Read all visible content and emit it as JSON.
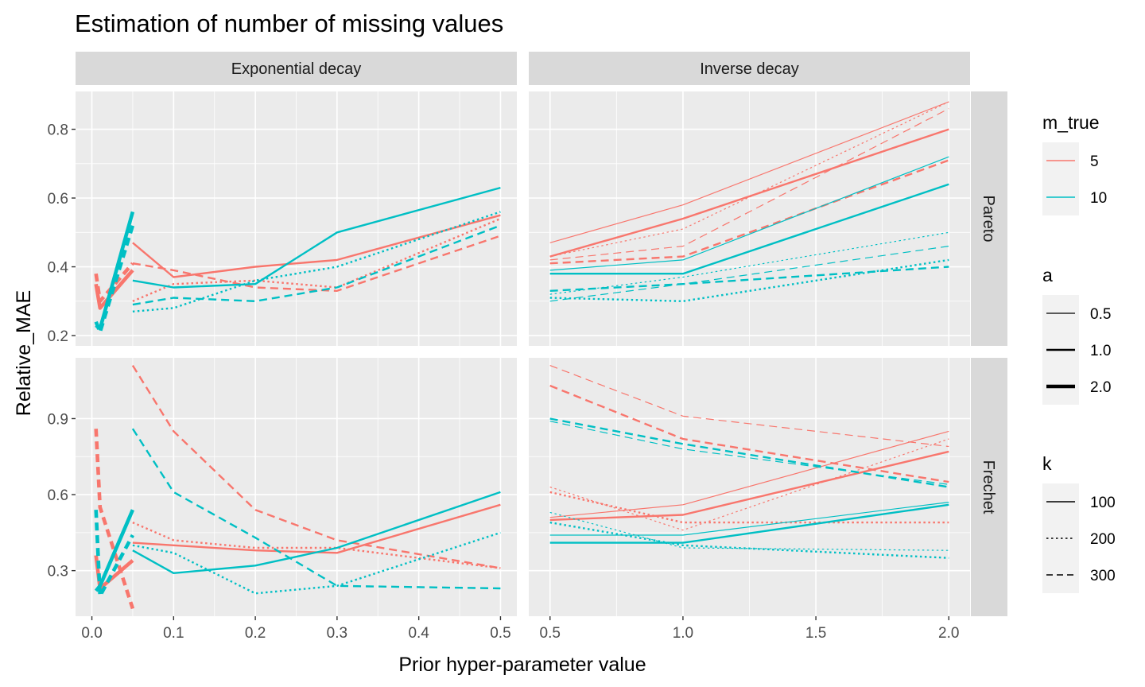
{
  "chart_data": {
    "type": "line",
    "title": "Estimation of number of missing values",
    "xlabel": "Prior hyper-parameter value",
    "ylabel": "Relative_MAE",
    "facet_columns": [
      {
        "label": "Exponential decay",
        "xlim": [
          -0.02,
          0.52
        ],
        "ticks": [
          0,
          0.1,
          0.2,
          0.3,
          0.4,
          0.5
        ],
        "tick_labels": [
          "0.0",
          "0.1",
          "0.2",
          "0.3",
          "0.4",
          "0.5"
        ]
      },
      {
        "label": "Inverse decay",
        "xlim": [
          0.42,
          2.08
        ],
        "ticks": [
          0.5,
          1.0,
          1.5,
          2.0
        ],
        "tick_labels": [
          "0.5",
          "1.0",
          "1.5",
          "2.0"
        ]
      }
    ],
    "facet_rows": [
      {
        "label": "Pareto",
        "ylim": [
          0.17,
          0.91
        ],
        "ticks": [
          0.2,
          0.4,
          0.6,
          0.8
        ],
        "tick_labels": [
          "0.2",
          "0.4",
          "0.6",
          "0.8"
        ]
      },
      {
        "label": "Frechet",
        "ylim": [
          0.12,
          1.14
        ],
        "ticks": [
          0.3,
          0.6,
          0.9
        ],
        "tick_labels": [
          "0.3",
          "0.6",
          "0.9"
        ]
      }
    ],
    "grid": true,
    "legend_position": "right",
    "colors": {
      "m_true_5": "#F8766D",
      "m_true_10": "#00BFC4"
    },
    "legends": [
      {
        "title": "m_true",
        "kind": "color",
        "entries": [
          {
            "label": "5",
            "color": "#F8766D"
          },
          {
            "label": "10",
            "color": "#00BFC4"
          }
        ]
      },
      {
        "title": "a",
        "kind": "linewidth",
        "entries": [
          {
            "label": "0.5",
            "width": 1.2
          },
          {
            "label": "1.0",
            "width": 2.4
          },
          {
            "label": "2.0",
            "width": 4.6
          }
        ]
      },
      {
        "title": "k",
        "kind": "linetype",
        "entries": [
          {
            "label": "100",
            "dash": "solid"
          },
          {
            "label": "200",
            "dash": "dotted"
          },
          {
            "label": "300",
            "dash": "dashed"
          }
        ]
      }
    ],
    "series": [
      {
        "panel": [
          0,
          0
        ],
        "m_true": "5",
        "a": "1.0",
        "k": "100",
        "x": [
          0.05,
          0.1,
          0.2,
          0.3,
          0.5
        ],
        "y": [
          0.47,
          0.37,
          0.4,
          0.42,
          0.55
        ]
      },
      {
        "panel": [
          0,
          0
        ],
        "m_true": "5",
        "a": "1.0",
        "k": "200",
        "x": [
          0.05,
          0.1,
          0.2,
          0.3,
          0.5
        ],
        "y": [
          0.3,
          0.35,
          0.36,
          0.34,
          0.54
        ]
      },
      {
        "panel": [
          0,
          0
        ],
        "m_true": "5",
        "a": "1.0",
        "k": "300",
        "x": [
          0.05,
          0.1,
          0.2,
          0.3,
          0.5
        ],
        "y": [
          0.41,
          0.39,
          0.34,
          0.33,
          0.49
        ]
      },
      {
        "panel": [
          0,
          0
        ],
        "m_true": "10",
        "a": "1.0",
        "k": "100",
        "x": [
          0.05,
          0.1,
          0.2,
          0.3,
          0.5
        ],
        "y": [
          0.36,
          0.34,
          0.35,
          0.5,
          0.63
        ]
      },
      {
        "panel": [
          0,
          0
        ],
        "m_true": "10",
        "a": "1.0",
        "k": "200",
        "x": [
          0.05,
          0.1,
          0.2,
          0.3,
          0.5
        ],
        "y": [
          0.27,
          0.28,
          0.36,
          0.4,
          0.56
        ]
      },
      {
        "panel": [
          0,
          0
        ],
        "m_true": "10",
        "a": "1.0",
        "k": "300",
        "x": [
          0.05,
          0.1,
          0.2,
          0.3,
          0.5
        ],
        "y": [
          0.29,
          0.31,
          0.3,
          0.34,
          0.52
        ]
      },
      {
        "panel": [
          0,
          0
        ],
        "m_true": "5",
        "a": "2.0",
        "k": "100",
        "x": [
          0.005,
          0.01,
          0.05
        ],
        "y": [
          0.35,
          0.28,
          0.39
        ]
      },
      {
        "panel": [
          0,
          0
        ],
        "m_true": "5",
        "a": "2.0",
        "k": "300",
        "x": [
          0.005,
          0.01,
          0.05
        ],
        "y": [
          0.38,
          0.3,
          0.41
        ]
      },
      {
        "panel": [
          0,
          0
        ],
        "m_true": "10",
        "a": "2.0",
        "k": "100",
        "x": [
          0.005,
          0.01,
          0.05
        ],
        "y": [
          0.23,
          0.22,
          0.56
        ]
      },
      {
        "panel": [
          0,
          0
        ],
        "m_true": "10",
        "a": "2.0",
        "k": "300",
        "x": [
          0.005,
          0.01,
          0.05
        ],
        "y": [
          0.24,
          0.21,
          0.52
        ]
      },
      {
        "panel": [
          0,
          1
        ],
        "m_true": "5",
        "a": "0.5",
        "k": "100",
        "x": [
          0.5,
          1.0,
          2.0
        ],
        "y": [
          0.47,
          0.58,
          0.88
        ]
      },
      {
        "panel": [
          0,
          1
        ],
        "m_true": "5",
        "a": "0.5",
        "k": "200",
        "x": [
          0.5,
          1.0,
          2.0
        ],
        "y": [
          0.43,
          0.51,
          0.88
        ]
      },
      {
        "panel": [
          0,
          1
        ],
        "m_true": "5",
        "a": "0.5",
        "k": "300",
        "x": [
          0.5,
          1.0,
          2.0
        ],
        "y": [
          0.42,
          0.46,
          0.86
        ]
      },
      {
        "panel": [
          0,
          1
        ],
        "m_true": "5",
        "a": "1.0",
        "k": "100",
        "x": [
          0.5,
          1.0,
          2.0
        ],
        "y": [
          0.43,
          0.54,
          0.8
        ]
      },
      {
        "panel": [
          0,
          1
        ],
        "m_true": "5",
        "a": "1.0",
        "k": "300",
        "x": [
          0.5,
          1.0,
          2.0
        ],
        "y": [
          0.41,
          0.43,
          0.71
        ]
      },
      {
        "panel": [
          0,
          1
        ],
        "m_true": "10",
        "a": "0.5",
        "k": "100",
        "x": [
          0.5,
          1.0,
          2.0
        ],
        "y": [
          0.39,
          0.42,
          0.72
        ]
      },
      {
        "panel": [
          0,
          1
        ],
        "m_true": "10",
        "a": "0.5",
        "k": "200",
        "x": [
          0.5,
          1.0,
          2.0
        ],
        "y": [
          0.32,
          0.37,
          0.5
        ]
      },
      {
        "panel": [
          0,
          1
        ],
        "m_true": "10",
        "a": "0.5",
        "k": "300",
        "x": [
          0.5,
          1.0,
          2.0
        ],
        "y": [
          0.3,
          0.35,
          0.46
        ]
      },
      {
        "panel": [
          0,
          1
        ],
        "m_true": "10",
        "a": "1.0",
        "k": "100",
        "x": [
          0.5,
          1.0,
          2.0
        ],
        "y": [
          0.38,
          0.38,
          0.64
        ]
      },
      {
        "panel": [
          0,
          1
        ],
        "m_true": "10",
        "a": "1.0",
        "k": "200",
        "x": [
          0.5,
          1.0,
          2.0
        ],
        "y": [
          0.31,
          0.3,
          0.42
        ]
      },
      {
        "panel": [
          0,
          1
        ],
        "m_true": "10",
        "a": "1.0",
        "k": "300",
        "x": [
          0.5,
          1.0,
          2.0
        ],
        "y": [
          0.33,
          0.35,
          0.4
        ]
      },
      {
        "panel": [
          1,
          0
        ],
        "m_true": "5",
        "a": "1.0",
        "k": "100",
        "x": [
          0.05,
          0.1,
          0.2,
          0.3,
          0.5
        ],
        "y": [
          0.41,
          0.4,
          0.38,
          0.37,
          0.56
        ]
      },
      {
        "panel": [
          1,
          0
        ],
        "m_true": "5",
        "a": "1.0",
        "k": "200",
        "x": [
          0.05,
          0.1,
          0.2,
          0.3,
          0.5
        ],
        "y": [
          0.49,
          0.42,
          0.39,
          0.39,
          0.31
        ]
      },
      {
        "panel": [
          1,
          0
        ],
        "m_true": "5",
        "a": "1.0",
        "k": "300",
        "x": [
          0.05,
          0.1,
          0.2,
          0.3,
          0.5
        ],
        "y": [
          1.11,
          0.85,
          0.54,
          0.42,
          0.31
        ]
      },
      {
        "panel": [
          1,
          0
        ],
        "m_true": "10",
        "a": "1.0",
        "k": "100",
        "x": [
          0.05,
          0.1,
          0.2,
          0.3,
          0.5
        ],
        "y": [
          0.38,
          0.29,
          0.32,
          0.39,
          0.61
        ]
      },
      {
        "panel": [
          1,
          0
        ],
        "m_true": "10",
        "a": "1.0",
        "k": "200",
        "x": [
          0.05,
          0.1,
          0.2,
          0.3,
          0.5
        ],
        "y": [
          0.4,
          0.37,
          0.21,
          0.24,
          0.45
        ]
      },
      {
        "panel": [
          1,
          0
        ],
        "m_true": "10",
        "a": "1.0",
        "k": "300",
        "x": [
          0.05,
          0.1,
          0.2,
          0.3,
          0.5
        ],
        "y": [
          0.86,
          0.61,
          0.43,
          0.24,
          0.23
        ]
      },
      {
        "panel": [
          1,
          0
        ],
        "m_true": "5",
        "a": "2.0",
        "k": "100",
        "x": [
          0.005,
          0.01,
          0.05
        ],
        "y": [
          0.36,
          0.23,
          0.34
        ]
      },
      {
        "panel": [
          1,
          0
        ],
        "m_true": "5",
        "a": "2.0",
        "k": "300",
        "x": [
          0.005,
          0.01,
          0.05
        ],
        "y": [
          0.86,
          0.55,
          0.15
        ]
      },
      {
        "panel": [
          1,
          0
        ],
        "m_true": "10",
        "a": "2.0",
        "k": "100",
        "x": [
          0.005,
          0.01,
          0.05
        ],
        "y": [
          0.22,
          0.24,
          0.54
        ]
      },
      {
        "panel": [
          1,
          0
        ],
        "m_true": "10",
        "a": "2.0",
        "k": "300",
        "x": [
          0.005,
          0.01,
          0.05
        ],
        "y": [
          0.54,
          0.2,
          0.44
        ]
      },
      {
        "panel": [
          1,
          1
        ],
        "m_true": "5",
        "a": "0.5",
        "k": "100",
        "x": [
          0.5,
          1.0,
          2.0
        ],
        "y": [
          0.51,
          0.56,
          0.85
        ]
      },
      {
        "panel": [
          1,
          1
        ],
        "m_true": "5",
        "a": "0.5",
        "k": "200",
        "x": [
          0.5,
          1.0,
          2.0
        ],
        "y": [
          0.63,
          0.46,
          0.82
        ]
      },
      {
        "panel": [
          1,
          1
        ],
        "m_true": "5",
        "a": "0.5",
        "k": "300",
        "x": [
          0.5,
          1.0,
          2.0
        ],
        "y": [
          1.11,
          0.91,
          0.79
        ]
      },
      {
        "panel": [
          1,
          1
        ],
        "m_true": "5",
        "a": "1.0",
        "k": "100",
        "x": [
          0.5,
          1.0,
          2.0
        ],
        "y": [
          0.5,
          0.52,
          0.77
        ]
      },
      {
        "panel": [
          1,
          1
        ],
        "m_true": "5",
        "a": "1.0",
        "k": "200",
        "x": [
          0.5,
          1.0,
          2.0
        ],
        "y": [
          0.61,
          0.49,
          0.49
        ]
      },
      {
        "panel": [
          1,
          1
        ],
        "m_true": "5",
        "a": "1.0",
        "k": "300",
        "x": [
          0.5,
          1.0,
          2.0
        ],
        "y": [
          1.03,
          0.82,
          0.65
        ]
      },
      {
        "panel": [
          1,
          1
        ],
        "m_true": "10",
        "a": "0.5",
        "k": "100",
        "x": [
          0.5,
          1.0,
          2.0
        ],
        "y": [
          0.44,
          0.44,
          0.57
        ]
      },
      {
        "panel": [
          1,
          1
        ],
        "m_true": "10",
        "a": "0.5",
        "k": "200",
        "x": [
          0.5,
          1.0,
          2.0
        ],
        "y": [
          0.53,
          0.39,
          0.38
        ]
      },
      {
        "panel": [
          1,
          1
        ],
        "m_true": "10",
        "a": "0.5",
        "k": "300",
        "x": [
          0.5,
          1.0,
          2.0
        ],
        "y": [
          0.89,
          0.78,
          0.64
        ]
      },
      {
        "panel": [
          1,
          1
        ],
        "m_true": "10",
        "a": "1.0",
        "k": "100",
        "x": [
          0.5,
          1.0,
          2.0
        ],
        "y": [
          0.41,
          0.41,
          0.56
        ]
      },
      {
        "panel": [
          1,
          1
        ],
        "m_true": "10",
        "a": "1.0",
        "k": "200",
        "x": [
          0.5,
          1.0,
          2.0
        ],
        "y": [
          0.49,
          0.4,
          0.35
        ]
      },
      {
        "panel": [
          1,
          1
        ],
        "m_true": "10",
        "a": "1.0",
        "k": "300",
        "x": [
          0.5,
          1.0,
          2.0
        ],
        "y": [
          0.9,
          0.8,
          0.63
        ]
      }
    ]
  }
}
